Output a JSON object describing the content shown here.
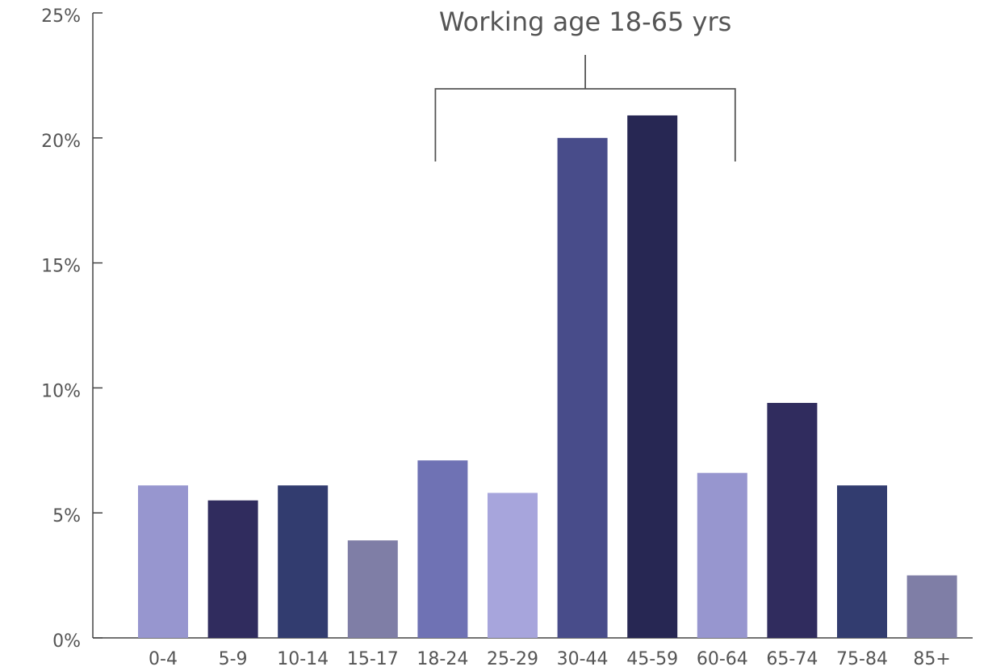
{
  "chart_data": {
    "type": "bar",
    "categories": [
      "0-4",
      "5-9",
      "10-14",
      "15-17",
      "18-24",
      "25-29",
      "30-44",
      "45-59",
      "60-64",
      "65-74",
      "75-84",
      "85+"
    ],
    "values": [
      6.1,
      5.5,
      6.1,
      3.9,
      7.1,
      5.8,
      20.0,
      20.9,
      6.6,
      9.4,
      6.1,
      2.5
    ],
    "colors": [
      "#9796cf",
      "#302c5e",
      "#323c6f",
      "#7f7ea6",
      "#6f72b4",
      "#a7a5dc",
      "#484c8a",
      "#272753",
      "#9796cf",
      "#302c5e",
      "#323c6f",
      "#7f7ea6"
    ],
    "ylim": [
      0,
      25
    ],
    "yticks": [
      0,
      5,
      10,
      15,
      20,
      25
    ],
    "ytick_labels": [
      "0%",
      "5%",
      "10%",
      "15%",
      "20%",
      "25%"
    ],
    "title": "",
    "xlabel": "",
    "ylabel": "",
    "grid": false,
    "annotation": {
      "text": "Working age 18-65 yrs",
      "from_category": "18-24",
      "to_category": "60-64"
    }
  }
}
